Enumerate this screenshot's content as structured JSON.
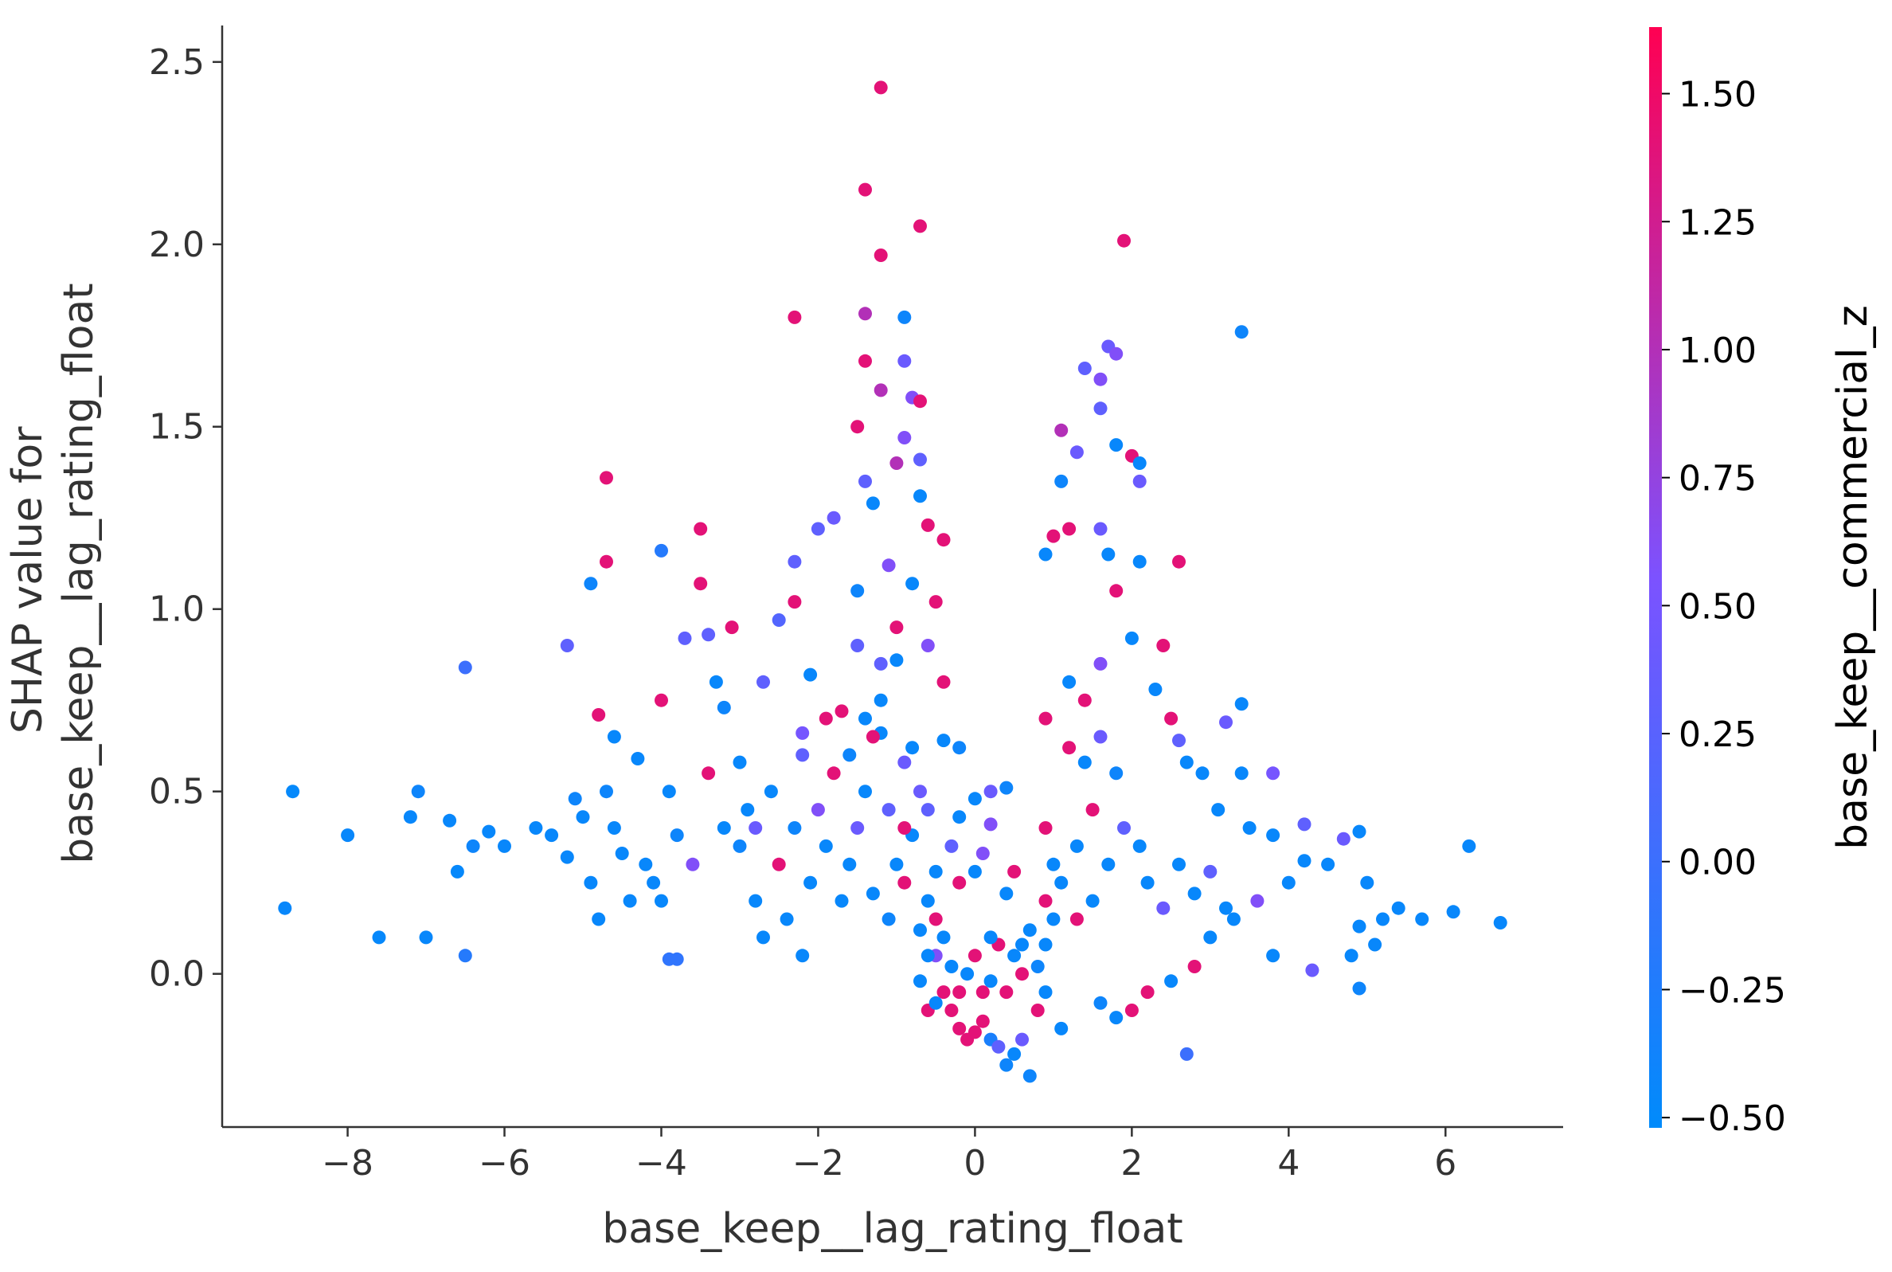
{
  "chart_data": {
    "type": "scatter",
    "title": "",
    "xlabel": "base_keep__lag_rating_float",
    "ylabel_lines": [
      "SHAP value for",
      "base_keep__lag_rating_float"
    ],
    "xlim": [
      -9.6,
      7.5
    ],
    "ylim": [
      -0.42,
      2.6
    ],
    "xticks": [
      -8,
      -6,
      -4,
      -2,
      0,
      2,
      4,
      6
    ],
    "xtick_labels": [
      "−8",
      "−6",
      "−4",
      "−2",
      "0",
      "2",
      "4",
      "6"
    ],
    "yticks": [
      0.0,
      0.5,
      1.0,
      1.5,
      2.0,
      2.5
    ],
    "ytick_labels": [
      "0.0",
      "0.5",
      "1.0",
      "1.5",
      "2.0",
      "2.5"
    ],
    "grid": false,
    "colorbar": {
      "label": "base_keep__commercial_z",
      "range": [
        -0.52,
        1.63
      ],
      "ticks": [
        -0.5,
        -0.25,
        0.0,
        0.25,
        0.5,
        0.75,
        1.0,
        1.25,
        1.5
      ],
      "tick_labels": [
        "−0.50",
        "−0.25",
        "0.00",
        "0.25",
        "0.50",
        "0.75",
        "1.00",
        "1.25",
        "1.50"
      ],
      "color_low": "#008bfb",
      "color_mid": "#7c52ff",
      "color_high": "#ff0052"
    },
    "points": [
      [
        -8.8,
        0.18,
        -0.45
      ],
      [
        -8.7,
        0.5,
        -0.48
      ],
      [
        -8.0,
        0.38,
        -0.45
      ],
      [
        -7.6,
        0.1,
        -0.47
      ],
      [
        -7.2,
        0.43,
        -0.45
      ],
      [
        -7.1,
        0.5,
        -0.4
      ],
      [
        -7.0,
        0.1,
        -0.45
      ],
      [
        -6.7,
        0.42,
        -0.45
      ],
      [
        -6.6,
        0.28,
        -0.47
      ],
      [
        -6.4,
        0.35,
        -0.4
      ],
      [
        -6.2,
        0.39,
        -0.45
      ],
      [
        -6.5,
        0.84,
        0.0
      ],
      [
        -6.0,
        0.35,
        -0.45
      ],
      [
        -6.5,
        0.05,
        -0.2
      ],
      [
        -5.6,
        0.4,
        -0.45
      ],
      [
        -5.4,
        0.38,
        -0.45
      ],
      [
        -5.2,
        0.32,
        -0.45
      ],
      [
        -5.1,
        0.48,
        -0.4
      ],
      [
        -5.0,
        0.43,
        -0.45
      ],
      [
        -4.9,
        0.25,
        -0.45
      ],
      [
        -4.8,
        0.15,
        -0.45
      ],
      [
        -4.7,
        0.5,
        -0.4
      ],
      [
        -4.6,
        0.4,
        -0.45
      ],
      [
        -4.5,
        0.33,
        -0.45
      ],
      [
        -4.4,
        0.2,
        -0.45
      ],
      [
        -4.2,
        0.3,
        -0.45
      ],
      [
        -4.1,
        0.25,
        -0.45
      ],
      [
        -4.0,
        0.2,
        -0.45
      ],
      [
        -3.9,
        0.5,
        -0.45
      ],
      [
        -3.8,
        0.38,
        -0.4
      ],
      [
        -5.2,
        0.9,
        0.3
      ],
      [
        -4.7,
        1.36,
        1.4
      ],
      [
        -4.9,
        1.07,
        -0.4
      ],
      [
        -4.7,
        1.13,
        1.4
      ],
      [
        -4.0,
        1.16,
        -0.2
      ],
      [
        -4.8,
        0.71,
        1.4
      ],
      [
        -4.6,
        0.65,
        -0.45
      ],
      [
        -4.3,
        0.59,
        -0.45
      ],
      [
        -4.0,
        0.75,
        1.4
      ],
      [
        -3.9,
        0.04,
        -0.1
      ],
      [
        -3.7,
        0.92,
        0.3
      ],
      [
        -3.5,
        1.22,
        1.4
      ],
      [
        -3.5,
        1.07,
        1.4
      ],
      [
        -3.4,
        0.93,
        0.3
      ],
      [
        -3.3,
        0.8,
        -0.45
      ],
      [
        -3.2,
        0.73,
        -0.4
      ],
      [
        -3.1,
        0.95,
        1.4
      ],
      [
        -3.0,
        0.58,
        -0.45
      ],
      [
        -2.9,
        0.45,
        -0.45
      ],
      [
        -2.8,
        0.4,
        0.4
      ],
      [
        -2.7,
        0.8,
        0.3
      ],
      [
        -2.5,
        0.97,
        0.2
      ],
      [
        -2.3,
        1.8,
        1.4
      ],
      [
        -2.3,
        1.13,
        0.3
      ],
      [
        -2.3,
        1.02,
        1.4
      ],
      [
        -2.2,
        0.66,
        0.5
      ],
      [
        -2.1,
        0.82,
        -0.45
      ],
      [
        -2.0,
        1.22,
        0.3
      ],
      [
        -1.9,
        0.7,
        1.4
      ],
      [
        -1.8,
        1.25,
        0.4
      ],
      [
        -1.5,
        1.5,
        1.4
      ],
      [
        -1.4,
        2.15,
        1.4
      ],
      [
        -1.4,
        1.81,
        1.0
      ],
      [
        -1.4,
        1.68,
        1.4
      ],
      [
        -1.4,
        1.35,
        0.3
      ],
      [
        -1.3,
        1.29,
        -0.45
      ],
      [
        -1.2,
        2.43,
        1.4
      ],
      [
        -1.2,
        1.97,
        1.4
      ],
      [
        -1.2,
        1.6,
        1.0
      ],
      [
        -1.1,
        1.12,
        0.6
      ],
      [
        -1.0,
        1.4,
        1.0
      ],
      [
        -0.9,
        1.8,
        -0.4
      ],
      [
        -0.9,
        1.68,
        0.4
      ],
      [
        -0.9,
        1.47,
        0.6
      ],
      [
        -0.8,
        1.58,
        0.6
      ],
      [
        -0.7,
        2.05,
        1.4
      ],
      [
        -0.7,
        1.57,
        1.4
      ],
      [
        -0.7,
        1.41,
        0.3
      ],
      [
        -0.7,
        1.31,
        -0.45
      ],
      [
        -0.6,
        1.23,
        1.4
      ],
      [
        -0.4,
        1.19,
        1.4
      ],
      [
        -0.5,
        1.02,
        1.4
      ],
      [
        -0.6,
        0.9,
        0.6
      ],
      [
        -1.0,
        0.86,
        -0.45
      ],
      [
        -1.5,
        0.9,
        0.3
      ],
      [
        -1.7,
        0.72,
        1.4
      ],
      [
        -1.2,
        0.66,
        -0.45
      ],
      [
        -0.9,
        0.58,
        0.4
      ],
      [
        -0.4,
        0.8,
        1.4
      ],
      [
        -0.4,
        0.64,
        -0.45
      ],
      [
        -0.2,
        0.62,
        -0.4
      ],
      [
        -0.2,
        0.43,
        -0.45
      ],
      [
        0.0,
        0.48,
        -0.45
      ],
      [
        0.2,
        0.5,
        0.4
      ],
      [
        0.2,
        0.41,
        0.6
      ],
      [
        0.4,
        0.51,
        -0.4
      ],
      [
        0.1,
        0.33,
        0.6
      ],
      [
        -0.2,
        0.25,
        1.4
      ],
      [
        0.5,
        0.28,
        1.4
      ],
      [
        0.4,
        0.22,
        -0.45
      ],
      [
        0.0,
        0.28,
        -0.45
      ],
      [
        -0.3,
        0.35,
        0.3
      ],
      [
        -0.5,
        0.28,
        -0.45
      ],
      [
        -0.6,
        0.2,
        -0.45
      ],
      [
        -0.7,
        0.12,
        -0.45
      ],
      [
        -0.5,
        0.05,
        0.6
      ],
      [
        -0.4,
        -0.05,
        1.4
      ],
      [
        -0.3,
        -0.1,
        1.4
      ],
      [
        -0.2,
        -0.15,
        1.4
      ],
      [
        -0.1,
        -0.18,
        1.4
      ],
      [
        0.0,
        -0.16,
        1.4
      ],
      [
        0.1,
        -0.13,
        1.4
      ],
      [
        0.2,
        -0.18,
        -0.3
      ],
      [
        0.3,
        -0.2,
        0.3
      ],
      [
        0.4,
        -0.25,
        -0.4
      ],
      [
        0.5,
        -0.22,
        -0.45
      ],
      [
        0.6,
        -0.18,
        0.4
      ],
      [
        0.7,
        -0.28,
        -0.4
      ],
      [
        0.8,
        -0.1,
        1.4
      ],
      [
        0.9,
        -0.05,
        -0.45
      ],
      [
        1.1,
        -0.15,
        -0.45
      ],
      [
        0.6,
        0.0,
        1.4
      ],
      [
        0.5,
        0.05,
        -0.45
      ],
      [
        0.3,
        0.08,
        1.4
      ],
      [
        0.2,
        0.1,
        -0.45
      ],
      [
        0.0,
        0.05,
        1.4
      ],
      [
        -0.1,
        0.0,
        -0.45
      ],
      [
        -0.2,
        -0.05,
        1.4
      ],
      [
        -0.3,
        0.02,
        -0.45
      ],
      [
        -0.4,
        0.1,
        -0.45
      ],
      [
        -0.5,
        0.15,
        1.4
      ],
      [
        -0.6,
        0.05,
        -0.45
      ],
      [
        -0.7,
        -0.02,
        -0.45
      ],
      [
        -0.6,
        -0.1,
        1.4
      ],
      [
        -0.5,
        -0.08,
        -0.45
      ],
      [
        0.1,
        -0.05,
        1.4
      ],
      [
        0.2,
        -0.02,
        -0.45
      ],
      [
        0.4,
        -0.05,
        1.4
      ],
      [
        0.6,
        0.08,
        -0.45
      ],
      [
        0.7,
        0.12,
        -0.45
      ],
      [
        0.8,
        0.02,
        -0.4
      ],
      [
        0.9,
        0.08,
        -0.45
      ],
      [
        1.0,
        0.15,
        -0.45
      ],
      [
        0.9,
        0.2,
        1.4
      ],
      [
        1.0,
        0.3,
        -0.45
      ],
      [
        0.9,
        0.4,
        1.4
      ],
      [
        0.9,
        0.7,
        1.4
      ],
      [
        0.9,
        1.15,
        -0.45
      ],
      [
        1.0,
        1.2,
        1.4
      ],
      [
        1.1,
        1.35,
        -0.4
      ],
      [
        1.1,
        1.49,
        1.0
      ],
      [
        1.2,
        1.22,
        1.4
      ],
      [
        1.3,
        1.43,
        0.4
      ],
      [
        1.4,
        1.66,
        0.3
      ],
      [
        1.6,
        1.63,
        0.6
      ],
      [
        1.6,
        1.55,
        0.3
      ],
      [
        1.7,
        1.72,
        0.4
      ],
      [
        1.8,
        1.7,
        0.6
      ],
      [
        1.9,
        2.01,
        1.4
      ],
      [
        1.8,
        1.45,
        -0.45
      ],
      [
        2.0,
        1.42,
        1.4
      ],
      [
        2.1,
        1.35,
        0.4
      ],
      [
        2.1,
        1.4,
        -0.45
      ],
      [
        1.6,
        1.22,
        0.4
      ],
      [
        1.7,
        1.15,
        -0.45
      ],
      [
        1.8,
        1.05,
        1.4
      ],
      [
        2.1,
        1.13,
        -0.45
      ],
      [
        2.6,
        1.13,
        1.4
      ],
      [
        3.4,
        1.76,
        -0.4
      ],
      [
        2.0,
        0.92,
        -0.45
      ],
      [
        2.4,
        0.9,
        1.4
      ],
      [
        2.3,
        0.78,
        -0.45
      ],
      [
        2.5,
        0.7,
        1.4
      ],
      [
        2.6,
        0.64,
        0.3
      ],
      [
        2.7,
        0.58,
        -0.45
      ],
      [
        2.9,
        0.55,
        -0.45
      ],
      [
        3.2,
        0.69,
        0.4
      ],
      [
        3.4,
        0.74,
        -0.45
      ],
      [
        3.4,
        0.55,
        -0.45
      ],
      [
        3.8,
        0.55,
        0.5
      ],
      [
        3.1,
        0.45,
        -0.45
      ],
      [
        3.5,
        0.4,
        -0.45
      ],
      [
        3.8,
        0.38,
        -0.45
      ],
      [
        4.2,
        0.41,
        0.3
      ],
      [
        4.2,
        0.31,
        -0.45
      ],
      [
        4.5,
        0.3,
        -0.45
      ],
      [
        4.7,
        0.37,
        0.4
      ],
      [
        4.9,
        0.39,
        -0.45
      ],
      [
        5.0,
        0.25,
        -0.45
      ],
      [
        4.9,
        0.13,
        -0.45
      ],
      [
        5.1,
        0.08,
        -0.45
      ],
      [
        4.8,
        0.05,
        -0.45
      ],
      [
        5.2,
        0.15,
        -0.45
      ],
      [
        5.4,
        0.18,
        -0.45
      ],
      [
        5.7,
        0.15,
        -0.45
      ],
      [
        6.1,
        0.17,
        -0.45
      ],
      [
        6.3,
        0.35,
        -0.45
      ],
      [
        6.7,
        0.14,
        -0.45
      ],
      [
        4.3,
        0.01,
        0.4
      ],
      [
        4.9,
        -0.04,
        -0.4
      ],
      [
        2.7,
        -0.22,
        0.0
      ],
      [
        2.0,
        -0.1,
        1.4
      ],
      [
        1.8,
        -0.12,
        -0.45
      ],
      [
        1.6,
        -0.08,
        -0.4
      ],
      [
        2.2,
        -0.05,
        1.4
      ],
      [
        2.5,
        -0.02,
        -0.45
      ],
      [
        2.8,
        0.02,
        1.4
      ],
      [
        3.0,
        0.1,
        -0.45
      ],
      [
        3.3,
        0.15,
        -0.45
      ],
      [
        3.6,
        0.2,
        0.6
      ],
      [
        4.0,
        0.25,
        -0.45
      ],
      [
        3.8,
        0.05,
        -0.45
      ],
      [
        -3.8,
        0.04,
        -0.1
      ],
      [
        -3.6,
        0.3,
        0.6
      ],
      [
        -3.4,
        0.55,
        1.4
      ],
      [
        -3.2,
        0.4,
        -0.45
      ],
      [
        -3.0,
        0.35,
        -0.4
      ],
      [
        -2.8,
        0.2,
        -0.45
      ],
      [
        -2.6,
        0.5,
        -0.45
      ],
      [
        -2.5,
        0.3,
        1.4
      ],
      [
        -2.4,
        0.15,
        -0.45
      ],
      [
        -2.3,
        0.4,
        -0.4
      ],
      [
        -2.2,
        0.6,
        0.3
      ],
      [
        -2.1,
        0.25,
        -0.45
      ],
      [
        -2.0,
        0.45,
        0.6
      ],
      [
        -1.9,
        0.35,
        -0.45
      ],
      [
        -1.8,
        0.55,
        1.4
      ],
      [
        -1.7,
        0.2,
        -0.45
      ],
      [
        -1.6,
        0.3,
        -0.45
      ],
      [
        -1.5,
        0.4,
        0.4
      ],
      [
        -1.4,
        0.5,
        -0.45
      ],
      [
        -1.3,
        0.65,
        1.4
      ],
      [
        -1.2,
        0.75,
        -0.45
      ],
      [
        -1.1,
        0.45,
        0.3
      ],
      [
        -1.0,
        0.3,
        -0.45
      ],
      [
        -0.9,
        0.25,
        1.4
      ],
      [
        -0.8,
        0.38,
        -0.45
      ],
      [
        -0.7,
        0.5,
        0.4
      ],
      [
        -1.6,
        0.6,
        -0.4
      ],
      [
        -1.4,
        0.7,
        -0.45
      ],
      [
        -1.2,
        0.85,
        0.3
      ],
      [
        -1.0,
        0.95,
        1.4
      ],
      [
        -0.8,
        1.07,
        -0.45
      ],
      [
        1.2,
        0.62,
        1.4
      ],
      [
        1.4,
        0.58,
        -0.45
      ],
      [
        1.6,
        0.65,
        0.4
      ],
      [
        1.8,
        0.55,
        -0.4
      ],
      [
        1.5,
        0.45,
        1.4
      ],
      [
        1.3,
        0.35,
        -0.45
      ],
      [
        1.7,
        0.3,
        -0.45
      ],
      [
        1.9,
        0.4,
        0.3
      ],
      [
        2.1,
        0.35,
        -0.45
      ],
      [
        1.2,
        0.8,
        -0.45
      ],
      [
        1.4,
        0.75,
        1.4
      ],
      [
        1.6,
        0.85,
        0.6
      ],
      [
        1.1,
        0.25,
        -0.45
      ],
      [
        1.3,
        0.15,
        1.4
      ],
      [
        1.5,
        0.2,
        -0.45
      ],
      [
        2.2,
        0.25,
        -0.45
      ],
      [
        2.4,
        0.18,
        0.4
      ],
      [
        2.6,
        0.3,
        -0.45
      ],
      [
        2.8,
        0.22,
        -0.45
      ],
      [
        3.0,
        0.28,
        0.3
      ],
      [
        3.2,
        0.18,
        -0.45
      ],
      [
        -1.3,
        0.22,
        -0.45
      ],
      [
        -1.1,
        0.15,
        -0.4
      ],
      [
        -2.7,
        0.1,
        -0.45
      ],
      [
        -2.2,
        0.05,
        -0.45
      ],
      [
        -0.9,
        0.4,
        1.4
      ],
      [
        -0.8,
        0.62,
        -0.45
      ],
      [
        -0.6,
        0.45,
        0.3
      ],
      [
        -1.5,
        1.05,
        -0.4
      ]
    ]
  }
}
